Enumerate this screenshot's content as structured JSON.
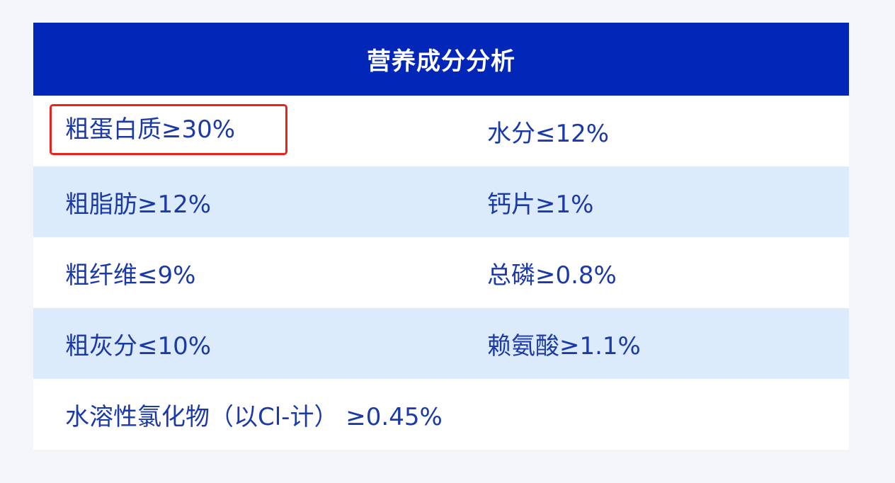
{
  "title": "营养成分分析",
  "highlight_color": "#e8231f",
  "header_color": "#0227b8",
  "rows": [
    {
      "left": "粗蛋白质≥30%",
      "right": "水分≤12%",
      "highlighted": true
    },
    {
      "left": "粗脂肪≥12%",
      "right": "钙片≥1%"
    },
    {
      "left": "粗纤维≤9%",
      "right": "总磷≥0.8%"
    },
    {
      "left": "粗灰分≤10%",
      "right": "赖氨酸≥1.1%"
    },
    {
      "left": "水溶性氯化物（以Cl-计） ≥0.45%",
      "right": ""
    }
  ]
}
